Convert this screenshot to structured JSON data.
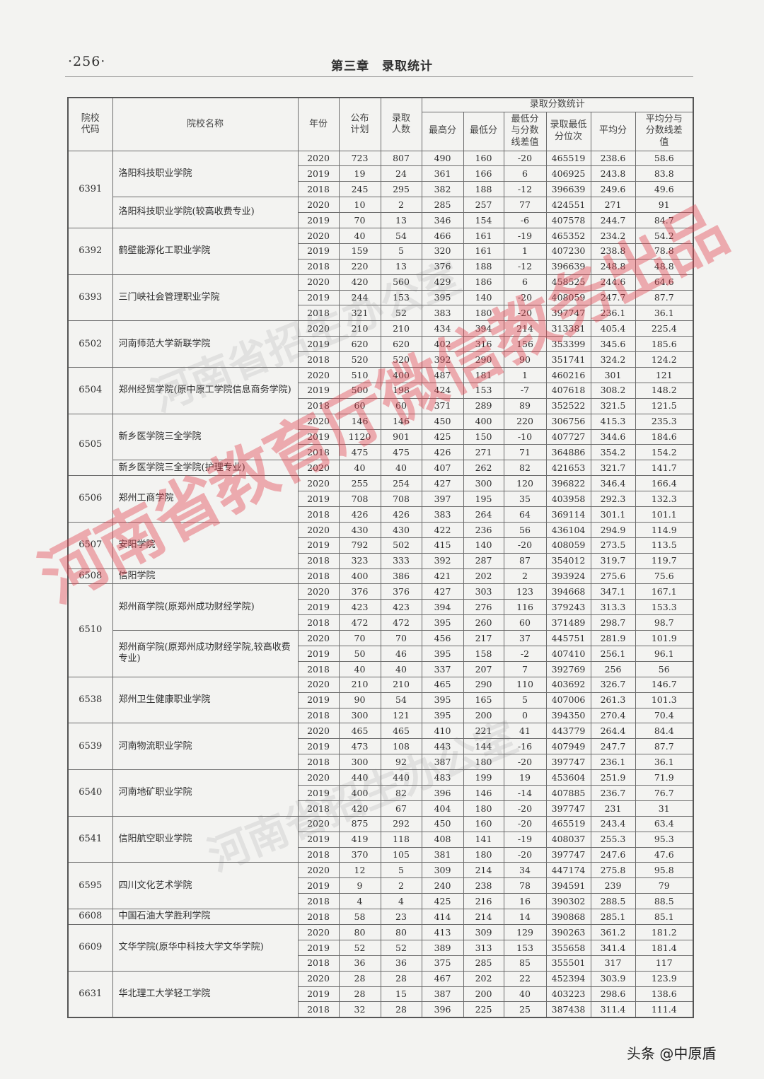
{
  "header": {
    "page_number": "·256·",
    "chapter_title": "第三章　录取统计"
  },
  "table": {
    "columns": {
      "code": "院校代码",
      "name": "院校名称",
      "year": "年份",
      "plan": "公布计划",
      "admitted": "录取人数",
      "score_group": "录取分数统计",
      "max": "最高分",
      "min": "最低分",
      "min_diff": "最低分与分数线差值",
      "min_rank": "录取最低分位次",
      "avg": "平均分",
      "avg_diff": "平均分与分数线差值"
    },
    "groups": [
      {
        "code": "6391",
        "subgroups": [
          {
            "name": "洛阳科技职业学院",
            "rows": [
              [
                "2020",
                "723",
                "807",
                "490",
                "160",
                "-20",
                "465519",
                "238.6",
                "58.6"
              ],
              [
                "2019",
                "19",
                "24",
                "361",
                "166",
                "6",
                "406925",
                "243.8",
                "83.8"
              ],
              [
                "2018",
                "245",
                "295",
                "382",
                "188",
                "-12",
                "396639",
                "249.6",
                "49.6"
              ]
            ]
          },
          {
            "name": "洛阳科技职业学院(较高收费专业)",
            "rows": [
              [
                "2020",
                "10",
                "2",
                "285",
                "257",
                "77",
                "424551",
                "271",
                "91"
              ],
              [
                "2019",
                "70",
                "13",
                "346",
                "154",
                "-6",
                "407578",
                "244.7",
                "84.7"
              ]
            ]
          }
        ]
      },
      {
        "code": "6392",
        "subgroups": [
          {
            "name": "鹤壁能源化工职业学院",
            "rows": [
              [
                "2020",
                "40",
                "54",
                "466",
                "161",
                "-19",
                "465352",
                "234.2",
                "54.2"
              ],
              [
                "2019",
                "159",
                "5",
                "320",
                "161",
                "1",
                "407230",
                "238.8",
                "78.8"
              ],
              [
                "2018",
                "220",
                "13",
                "376",
                "188",
                "-12",
                "396639",
                "248.8",
                "48.8"
              ]
            ]
          }
        ]
      },
      {
        "code": "6393",
        "subgroups": [
          {
            "name": "三门峡社会管理职业学院",
            "rows": [
              [
                "2020",
                "420",
                "560",
                "429",
                "186",
                "6",
                "458525",
                "244.6",
                "64.6"
              ],
              [
                "2019",
                "244",
                "153",
                "395",
                "140",
                "-20",
                "408059",
                "247.7",
                "87.7"
              ],
              [
                "2018",
                "321",
                "52",
                "383",
                "180",
                "-20",
                "397747",
                "236.1",
                "36.1"
              ]
            ]
          }
        ]
      },
      {
        "code": "6502",
        "subgroups": [
          {
            "name": "河南师范大学新联学院",
            "rows": [
              [
                "2020",
                "210",
                "210",
                "434",
                "394",
                "214",
                "313381",
                "405.4",
                "225.4"
              ],
              [
                "2019",
                "620",
                "620",
                "402",
                "316",
                "156",
                "353399",
                "345.6",
                "185.6"
              ],
              [
                "2018",
                "520",
                "520",
                "392",
                "290",
                "90",
                "351741",
                "324.2",
                "124.2"
              ]
            ]
          }
        ]
      },
      {
        "code": "6504",
        "subgroups": [
          {
            "name": "郑州经贸学院(原中原工学院信息商务学院)",
            "rows": [
              [
                "2020",
                "510",
                "400",
                "487",
                "181",
                "1",
                "460216",
                "301",
                "121"
              ],
              [
                "2019",
                "500",
                "198",
                "424",
                "153",
                "-7",
                "407618",
                "308.2",
                "148.2"
              ],
              [
                "2018",
                "60",
                "60",
                "371",
                "289",
                "89",
                "352522",
                "321.5",
                "121.5"
              ]
            ]
          }
        ]
      },
      {
        "code": "6505",
        "subgroups": [
          {
            "name": "新乡医学院三全学院",
            "rows": [
              [
                "2020",
                "146",
                "146",
                "450",
                "400",
                "220",
                "306756",
                "415.3",
                "235.3"
              ],
              [
                "2019",
                "1120",
                "901",
                "425",
                "150",
                "-10",
                "407727",
                "344.6",
                "184.6"
              ],
              [
                "2018",
                "475",
                "475",
                "426",
                "271",
                "71",
                "364886",
                "354.2",
                "154.2"
              ]
            ]
          },
          {
            "name": "新乡医学院三全学院(护理专业)",
            "rows": [
              [
                "2020",
                "40",
                "40",
                "407",
                "262",
                "82",
                "421653",
                "321.7",
                "141.7"
              ]
            ]
          }
        ]
      },
      {
        "code": "6506",
        "subgroups": [
          {
            "name": "郑州工商学院",
            "rows": [
              [
                "2020",
                "255",
                "254",
                "427",
                "300",
                "120",
                "396822",
                "346.4",
                "166.4"
              ],
              [
                "2019",
                "708",
                "708",
                "397",
                "195",
                "35",
                "403958",
                "292.3",
                "132.3"
              ],
              [
                "2018",
                "426",
                "426",
                "383",
                "264",
                "64",
                "369114",
                "301.1",
                "101.1"
              ]
            ]
          }
        ]
      },
      {
        "code": "6507",
        "subgroups": [
          {
            "name": "安阳学院",
            "rows": [
              [
                "2020",
                "430",
                "430",
                "422",
                "236",
                "56",
                "436104",
                "294.9",
                "114.9"
              ],
              [
                "2019",
                "792",
                "502",
                "415",
                "140",
                "-20",
                "408059",
                "273.5",
                "113.5"
              ],
              [
                "2018",
                "323",
                "333",
                "392",
                "287",
                "87",
                "354012",
                "319.7",
                "119.7"
              ]
            ]
          }
        ]
      },
      {
        "code": "6508",
        "subgroups": [
          {
            "name": "信阳学院",
            "rows": [
              [
                "2018",
                "400",
                "386",
                "421",
                "202",
                "2",
                "393924",
                "275.6",
                "75.6"
              ]
            ]
          }
        ]
      },
      {
        "code": "6510",
        "subgroups": [
          {
            "name": "郑州商学院(原郑州成功财经学院)",
            "rows": [
              [
                "2020",
                "376",
                "376",
                "427",
                "303",
                "123",
                "394668",
                "347.1",
                "167.1"
              ],
              [
                "2019",
                "423",
                "423",
                "394",
                "276",
                "116",
                "379243",
                "313.3",
                "153.3"
              ],
              [
                "2018",
                "472",
                "472",
                "395",
                "260",
                "60",
                "371489",
                "298.7",
                "98.7"
              ]
            ]
          },
          {
            "name": "郑州商学院(原郑州成功财经学院,较高收费专业)",
            "rows": [
              [
                "2020",
                "70",
                "70",
                "456",
                "217",
                "37",
                "445751",
                "281.9",
                "101.9"
              ],
              [
                "2019",
                "50",
                "46",
                "395",
                "158",
                "-2",
                "407410",
                "256.1",
                "96.1"
              ],
              [
                "2018",
                "40",
                "40",
                "337",
                "207",
                "7",
                "392769",
                "256",
                "56"
              ]
            ]
          }
        ]
      },
      {
        "code": "6538",
        "subgroups": [
          {
            "name": "郑州卫生健康职业学院",
            "rows": [
              [
                "2020",
                "210",
                "210",
                "465",
                "290",
                "110",
                "403692",
                "326.7",
                "146.7"
              ],
              [
                "2019",
                "90",
                "54",
                "395",
                "165",
                "5",
                "407006",
                "261.3",
                "101.3"
              ],
              [
                "2018",
                "300",
                "121",
                "395",
                "200",
                "0",
                "394350",
                "270.4",
                "70.4"
              ]
            ]
          }
        ]
      },
      {
        "code": "6539",
        "subgroups": [
          {
            "name": "河南物流职业学院",
            "rows": [
              [
                "2020",
                "465",
                "465",
                "410",
                "221",
                "41",
                "443779",
                "264.4",
                "84.4"
              ],
              [
                "2019",
                "473",
                "108",
                "443",
                "144",
                "-16",
                "407949",
                "247.7",
                "87.7"
              ],
              [
                "2018",
                "300",
                "92",
                "387",
                "180",
                "-20",
                "397747",
                "236.1",
                "36.1"
              ]
            ]
          }
        ]
      },
      {
        "code": "6540",
        "subgroups": [
          {
            "name": "河南地矿职业学院",
            "rows": [
              [
                "2020",
                "440",
                "440",
                "483",
                "199",
                "19",
                "453604",
                "251.9",
                "71.9"
              ],
              [
                "2019",
                "400",
                "82",
                "396",
                "146",
                "-14",
                "407885",
                "236.7",
                "76.7"
              ],
              [
                "2018",
                "420",
                "67",
                "404",
                "180",
                "-20",
                "397747",
                "231",
                "31"
              ]
            ]
          }
        ]
      },
      {
        "code": "6541",
        "subgroups": [
          {
            "name": "信阳航空职业学院",
            "rows": [
              [
                "2020",
                "875",
                "292",
                "450",
                "160",
                "-20",
                "465519",
                "243.4",
                "63.4"
              ],
              [
                "2019",
                "419",
                "118",
                "408",
                "141",
                "-19",
                "408037",
                "255.3",
                "95.3"
              ],
              [
                "2018",
                "370",
                "105",
                "381",
                "180",
                "-20",
                "397747",
                "247.6",
                "47.6"
              ]
            ]
          }
        ]
      },
      {
        "code": "6595",
        "subgroups": [
          {
            "name": "四川文化艺术学院",
            "rows": [
              [
                "2020",
                "12",
                "5",
                "309",
                "214",
                "34",
                "447174",
                "275.8",
                "95.8"
              ],
              [
                "2019",
                "9",
                "2",
                "240",
                "238",
                "78",
                "394591",
                "239",
                "79"
              ],
              [
                "2018",
                "4",
                "4",
                "425",
                "216",
                "16",
                "390302",
                "288.5",
                "88.5"
              ]
            ]
          }
        ]
      },
      {
        "code": "6608",
        "subgroups": [
          {
            "name": "中国石油大学胜利学院",
            "rows": [
              [
                "2018",
                "58",
                "23",
                "414",
                "214",
                "14",
                "390868",
                "285.1",
                "85.1"
              ]
            ]
          }
        ]
      },
      {
        "code": "6609",
        "subgroups": [
          {
            "name": "文华学院(原华中科技大学文华学院)",
            "rows": [
              [
                "2020",
                "80",
                "80",
                "413",
                "309",
                "129",
                "390263",
                "361.2",
                "181.2"
              ],
              [
                "2019",
                "52",
                "52",
                "389",
                "313",
                "153",
                "355658",
                "341.4",
                "181.4"
              ],
              [
                "2018",
                "36",
                "36",
                "375",
                "285",
                "85",
                "355501",
                "317",
                "117"
              ]
            ]
          }
        ]
      },
      {
        "code": "6631",
        "subgroups": [
          {
            "name": "华北理工大学轻工学院",
            "rows": [
              [
                "2020",
                "28",
                "28",
                "467",
                "202",
                "22",
                "452394",
                "303.9",
                "123.9"
              ],
              [
                "2019",
                "28",
                "15",
                "387",
                "200",
                "40",
                "403223",
                "298.6",
                "138.6"
              ],
              [
                "2018",
                "32",
                "28",
                "396",
                "225",
                "25",
                "387438",
                "311.4",
                "111.4"
              ]
            ]
          }
        ]
      }
    ]
  },
  "watermarks": {
    "red": "河南省教育厅微信教务出品",
    "gray": "河南省招生办公室"
  },
  "footer": {
    "attribution": "头条 @中原盾"
  },
  "colors": {
    "watermark_red": "#e24650",
    "text": "#2e2e2e",
    "paper": "#f3f3f1"
  }
}
